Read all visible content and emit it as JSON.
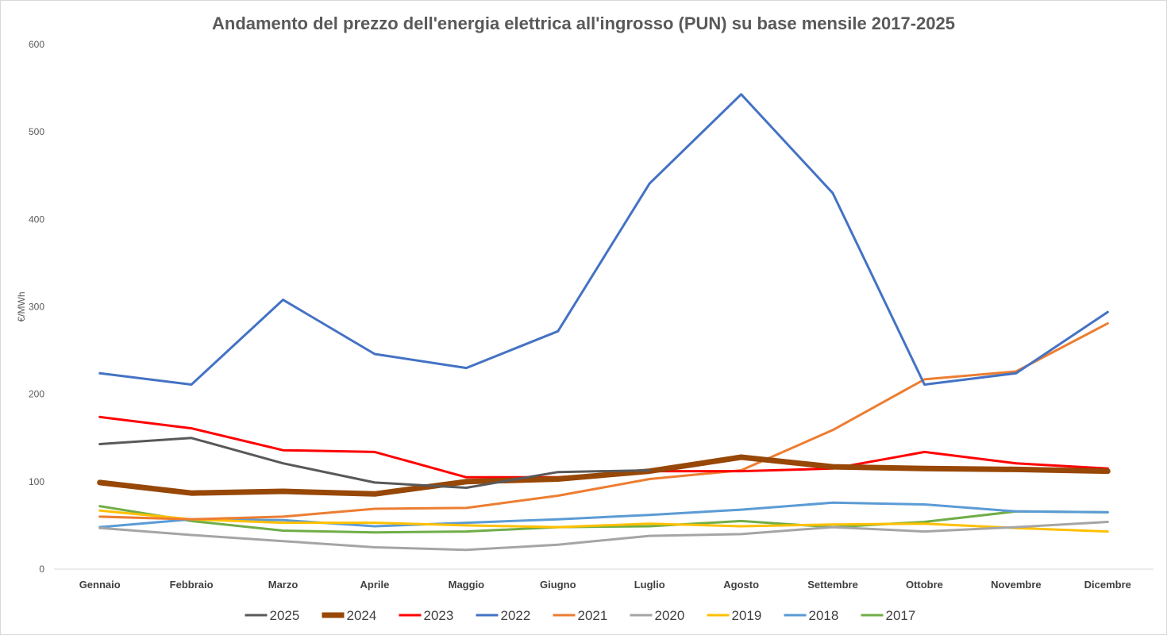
{
  "chart_data": {
    "type": "line",
    "title": "Andamento del prezzo dell'energia elettrica all'ingrosso (PUN) su base mensile 2017-2025",
    "xlabel": "",
    "ylabel": "€/MWh",
    "ylim": [
      0,
      600
    ],
    "yticks": [
      0,
      100,
      200,
      300,
      400,
      500,
      600
    ],
    "grid": false,
    "legend_position": "bottom",
    "categories": [
      "Gennaio",
      "Febbraio",
      "Marzo",
      "Aprile",
      "Maggio",
      "Giugno",
      "Luglio",
      "Agosto",
      "Settembre",
      "Ottobre",
      "Novembre",
      "Dicembre"
    ],
    "series": [
      {
        "name": "2025",
        "color": "#595959",
        "emphasis": false,
        "values": [
          143,
          150,
          121,
          99,
          93,
          111,
          113,
          null,
          null,
          null,
          null,
          null
        ]
      },
      {
        "name": "2024",
        "color": "#974706",
        "emphasis": true,
        "values": [
          99,
          87,
          89,
          86,
          100,
          103,
          112,
          128,
          117,
          115,
          114,
          112
        ]
      },
      {
        "name": "2023",
        "color": "#ff0000",
        "emphasis": false,
        "values": [
          174,
          161,
          136,
          134,
          105,
          105,
          112,
          112,
          115,
          134,
          121,
          115
        ]
      },
      {
        "name": "2022",
        "color": "#4472c4",
        "emphasis": false,
        "values": [
          224,
          211,
          308,
          246,
          230,
          272,
          441,
          543,
          430,
          211,
          224,
          294
        ]
      },
      {
        "name": "2021",
        "color": "#ed7d31",
        "emphasis": false,
        "values": [
          60,
          57,
          60,
          69,
          70,
          84,
          103,
          113,
          159,
          217,
          226,
          281
        ]
      },
      {
        "name": "2020",
        "color": "#a5a5a5",
        "emphasis": false,
        "values": [
          47,
          39,
          32,
          25,
          22,
          28,
          38,
          40,
          48,
          43,
          48,
          54
        ]
      },
      {
        "name": "2019",
        "color": "#ffc000",
        "emphasis": false,
        "values": [
          67,
          57,
          53,
          53,
          50,
          48,
          52,
          49,
          51,
          52,
          47,
          43
        ]
      },
      {
        "name": "2018",
        "color": "#5b9bd5",
        "emphasis": false,
        "values": [
          48,
          57,
          56,
          49,
          53,
          57,
          62,
          68,
          76,
          74,
          66,
          65
        ]
      },
      {
        "name": "2017",
        "color": "#70ad47",
        "emphasis": false,
        "values": [
          72,
          55,
          44,
          42,
          43,
          48,
          49,
          55,
          48,
          54,
          66,
          65
        ]
      }
    ]
  }
}
